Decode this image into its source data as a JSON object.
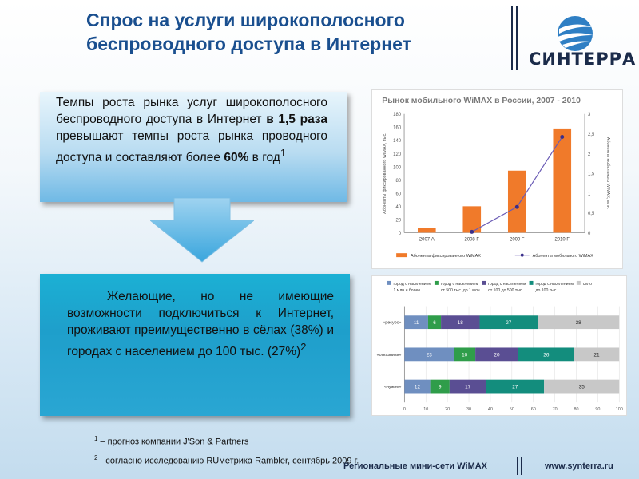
{
  "title": {
    "line1": "Спрос на услуги широкополосного",
    "line2": "беспроводного доступа в Интернет"
  },
  "logo": {
    "text": "СИНТЕРРА",
    "icon": "synterra-globe-icon"
  },
  "box1": {
    "text_a": "Темпы роста рынка услуг широкополосного беспроводного доступа в Интернет ",
    "bold_a": "в 1,5 раза",
    "text_b": " превышают темпы роста рынка проводного доступа и составляют более ",
    "bold_b": "60%",
    "text_c": " в год",
    "sup": "1"
  },
  "box2": {
    "text": "Желающие, но не имеющие возможности подключиться к Интернет, проживают преимущественно в сёлах (38%) и городах с населением до 100 тыс. (27%)",
    "sup": "2"
  },
  "footnotes": {
    "n1_num": "1",
    "n1": " – прогноз компании J'Son & Partners",
    "n2_num": "2",
    "n2": "  - согласно исследованию RUметрика Rambler, сентябрь 2009 г."
  },
  "footer": {
    "left": "Региональные мини-сети WiMAX",
    "right": "www.synterra.ru"
  },
  "chart_data": [
    {
      "type": "bar",
      "title": "Рынок мобильного WiMAX в России, 2007 - 2010",
      "categories": [
        "2007 А",
        "2008 F",
        "2009 F",
        "2010 F"
      ],
      "series": [
        {
          "name": "Абоненты фиксированного WiMAX",
          "type": "bar",
          "values": [
            7,
            40,
            94,
            158
          ],
          "color": "#f07a2a"
        },
        {
          "name": "Абоненты мобильного WiMAX",
          "type": "line",
          "values": [
            0,
            0.02,
            0.65,
            2.42
          ],
          "color": "#6a5bb5"
        }
      ],
      "ylabel": "Абоненты фиксированного WiMAX, тыс.",
      "y2label": "Абоненты мобильного WiMAX, млн.",
      "ylim": [
        0,
        180
      ],
      "y2lim": [
        0,
        3
      ],
      "yticks": [
        "0",
        "20",
        "40",
        "60",
        "80",
        "100",
        "120",
        "140",
        "160",
        "180"
      ],
      "y2ticks": [
        "0",
        "0,5",
        "1",
        "1,5",
        "2",
        "2,5",
        "3"
      ],
      "legend": "bottom"
    },
    {
      "type": "bar",
      "stacked": true,
      "orientation": "horizontal",
      "categories": [
        "«ресурс»",
        "«отказники»",
        "«чужие»"
      ],
      "series": [
        {
          "name": "город с населением 1 млн и более",
          "values": [
            11,
            23,
            12
          ],
          "color": "#6f8fc0"
        },
        {
          "name": "город с населением от 500 тыс. до 1 млн",
          "values": [
            6,
            10,
            9
          ],
          "color": "#2f9d4a"
        },
        {
          "name": "город с населением от 100 до 500 тыс.",
          "values": [
            18,
            20,
            17
          ],
          "color": "#5a4e93"
        },
        {
          "name": "город с населением до 100 тыс.",
          "values": [
            27,
            26,
            27
          ],
          "color": "#138d7d"
        },
        {
          "name": "село",
          "values": [
            38,
            21,
            35
          ],
          "color": "#c8c8c8"
        }
      ],
      "xlim": [
        0,
        100
      ],
      "xticks": [
        "0",
        "10",
        "20",
        "30",
        "40",
        "50",
        "60",
        "70",
        "80",
        "90",
        "100"
      ],
      "legend": "top"
    }
  ]
}
